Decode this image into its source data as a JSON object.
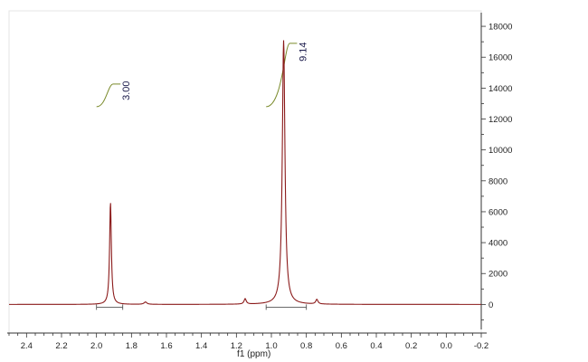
{
  "chart_data": {
    "type": "line",
    "title": "",
    "xlabel": "f1 (ppm)",
    "ylabel": "",
    "x_reversed": true,
    "xlim": [
      2.5,
      -0.2
    ],
    "ylim": [
      -1500,
      19000
    ],
    "x_ticks": [
      2.4,
      2.2,
      2.0,
      1.8,
      1.6,
      1.4,
      1.2,
      1.0,
      0.8,
      0.6,
      0.4,
      0.2,
      0.0,
      -0.2
    ],
    "x_tick_labels": [
      "2.4",
      "2.2",
      "2.0",
      "1.8",
      "1.6",
      "1.4",
      "1.2",
      "1.0",
      "0.8",
      "0.6",
      "0.4",
      "0.2",
      "0.0",
      "-0.2"
    ],
    "y_ticks": [
      0,
      2000,
      4000,
      6000,
      8000,
      10000,
      12000,
      14000,
      16000,
      18000
    ],
    "y_tick_labels": [
      "0",
      "2000",
      "4000",
      "6000",
      "8000",
      "10000",
      "12000",
      "14000",
      "16000",
      "18000"
    ],
    "y_axis_side": "right",
    "grid": false,
    "peaks": [
      {
        "shift": 1.92,
        "height": 6600,
        "width": 0.012
      },
      {
        "shift": 0.93,
        "height": 17100,
        "width": 0.018
      },
      {
        "shift": 1.72,
        "height": 150,
        "width": 0.02
      },
      {
        "shift": 1.15,
        "height": 350,
        "width": 0.015
      },
      {
        "shift": 0.74,
        "height": 300,
        "width": 0.015
      }
    ],
    "integrals": [
      {
        "label": "3.00",
        "from": 2.0,
        "to": 1.85,
        "value": 3.0
      },
      {
        "label": "9.14",
        "from": 1.03,
        "to": 0.8,
        "value": 9.14
      }
    ],
    "colors": {
      "spectrum": "#8b1a1a",
      "integral_curve": "#7a8a2a",
      "axis": "#333333",
      "integral_bracket": "#555555"
    }
  }
}
